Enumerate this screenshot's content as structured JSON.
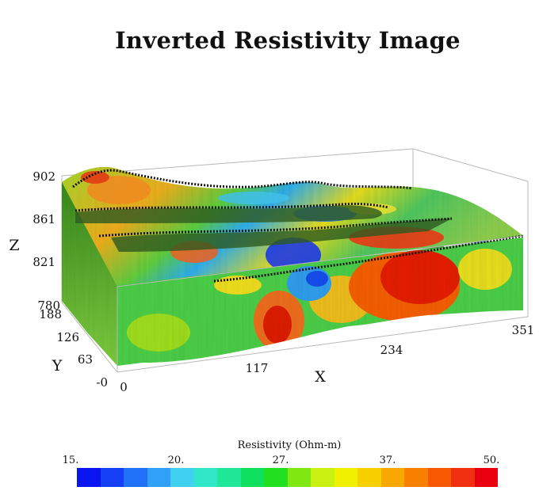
{
  "title": "Inverted Resistivity Image",
  "chart_data": {
    "type": "heatmap",
    "title": "Inverted Resistivity Image",
    "x_axis": {
      "label": "X",
      "ticks": [
        "0",
        "117",
        "234",
        "351"
      ],
      "range": [
        0,
        351
      ]
    },
    "y_axis": {
      "label": "Y",
      "ticks": [
        "-0",
        "63",
        "126",
        "188"
      ],
      "range": [
        0,
        188
      ]
    },
    "z_axis": {
      "label": "Z",
      "ticks": [
        "780",
        "821",
        "861",
        "902"
      ],
      "range": [
        780,
        902
      ]
    },
    "colorbar": {
      "title": "Resistivity (Ohm-m)",
      "ticks": [
        "15.",
        "20.",
        "27.",
        "37.",
        "50."
      ],
      "range": [
        15,
        50
      ],
      "colors": [
        "#0a14f0",
        "#1440f5",
        "#2070f8",
        "#30a0f8",
        "#40d0f0",
        "#30e8c8",
        "#20e898",
        "#10e060",
        "#20e020",
        "#80e810",
        "#c8f010",
        "#f0f000",
        "#f8d000",
        "#f8a800",
        "#f88000",
        "#f85800",
        "#f03010",
        "#e80010"
      ]
    },
    "survey_lines": 4
  }
}
